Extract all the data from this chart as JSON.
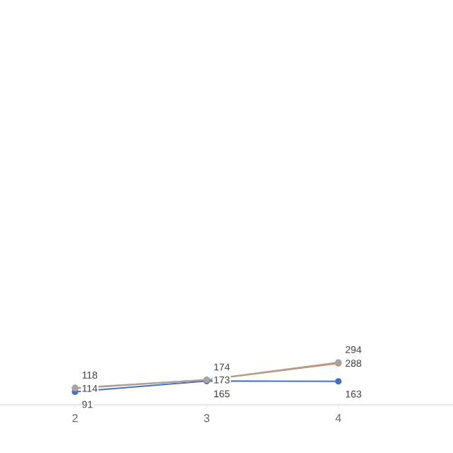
{
  "chart_data": {
    "type": "line",
    "data_labels": true,
    "marker": "circle",
    "categories": [
      "2",
      "3",
      "4"
    ],
    "series": [
      {
        "color": "#4472c4",
        "values": [
          91,
          165,
          163
        ]
      },
      {
        "color": "#ed7d31",
        "values": [
          114,
          173,
          288
        ]
      },
      {
        "color": "#a5a5a5",
        "values": [
          118,
          174,
          294
        ]
      }
    ]
  }
}
